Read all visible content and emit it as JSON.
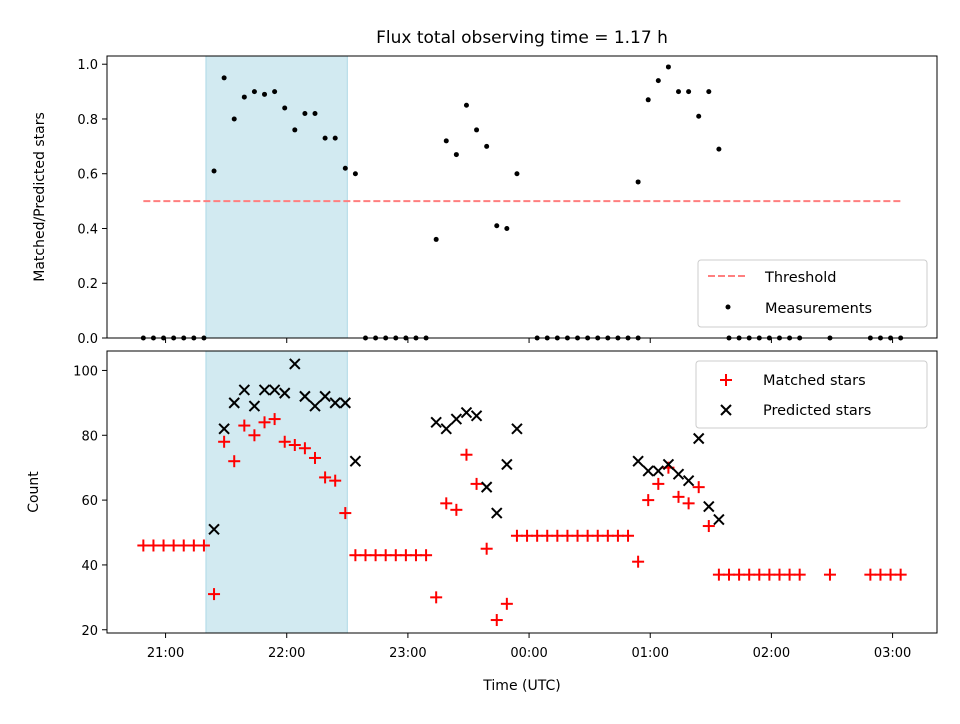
{
  "chart_data": [
    {
      "type": "scatter",
      "title": "Flux total observing time = 1.17 h",
      "xlabel": "",
      "ylabel": "Matched/Predicted stars",
      "ylim": [
        0,
        1.03
      ],
      "y_ticks": [
        "0.0",
        "0.2",
        "0.4",
        "0.6",
        "0.8",
        "1.0"
      ],
      "y_tick_values": [
        0,
        0.2,
        0.4,
        0.6,
        0.8,
        1.0
      ],
      "shaded_interval": [
        "21:20",
        "22:30"
      ],
      "shade_color": "#add8e6",
      "threshold": {
        "name": "Threshold",
        "y": 0.5,
        "x_start": "20:49",
        "x_end": "03:04",
        "color": "#ff7f7f"
      },
      "legend": {
        "location": "lower right",
        "entries": [
          "Threshold",
          "Measurements"
        ]
      },
      "series": [
        {
          "name": "Measurements",
          "marker": "dot",
          "color": "#000000",
          "points": [
            [
              "20:49",
              0
            ],
            [
              "20:54",
              0
            ],
            [
              "20:59",
              0
            ],
            [
              "21:04",
              0
            ],
            [
              "21:09",
              0
            ],
            [
              "21:14",
              0
            ],
            [
              "21:19",
              0
            ],
            [
              "21:24",
              0.61
            ],
            [
              "21:29",
              0.95
            ],
            [
              "21:34",
              0.8
            ],
            [
              "21:39",
              0.88
            ],
            [
              "21:44",
              0.9
            ],
            [
              "21:49",
              0.89
            ],
            [
              "21:54",
              0.9
            ],
            [
              "21:59",
              0.84
            ],
            [
              "22:04",
              0.76
            ],
            [
              "22:09",
              0.82
            ],
            [
              "22:14",
              0.82
            ],
            [
              "22:19",
              0.73
            ],
            [
              "22:24",
              0.73
            ],
            [
              "22:29",
              0.62
            ],
            [
              "22:34",
              0.6
            ],
            [
              "22:39",
              0
            ],
            [
              "22:44",
              0
            ],
            [
              "22:49",
              0
            ],
            [
              "22:54",
              0
            ],
            [
              "22:59",
              0
            ],
            [
              "23:04",
              0
            ],
            [
              "23:09",
              0
            ],
            [
              "23:14",
              0.36
            ],
            [
              "23:19",
              0.72
            ],
            [
              "23:24",
              0.67
            ],
            [
              "23:29",
              0.85
            ],
            [
              "23:34",
              0.76
            ],
            [
              "23:39",
              0.7
            ],
            [
              "23:44",
              0.41
            ],
            [
              "23:49",
              0.4
            ],
            [
              "23:54",
              0.6
            ],
            [
              "00:04",
              0
            ],
            [
              "00:09",
              0
            ],
            [
              "00:14",
              0
            ],
            [
              "00:19",
              0
            ],
            [
              "00:24",
              0
            ],
            [
              "00:29",
              0
            ],
            [
              "00:34",
              0
            ],
            [
              "00:39",
              0
            ],
            [
              "00:44",
              0
            ],
            [
              "00:49",
              0
            ],
            [
              "00:54",
              0
            ],
            [
              "00:54",
              0.57
            ],
            [
              "00:59",
              0.87
            ],
            [
              "01:04",
              0.94
            ],
            [
              "01:09",
              0.99
            ],
            [
              "01:14",
              0.9
            ],
            [
              "01:19",
              0.9
            ],
            [
              "01:24",
              0.81
            ],
            [
              "01:29",
              0.9
            ],
            [
              "01:34",
              0.69
            ],
            [
              "01:39",
              0
            ],
            [
              "01:44",
              0
            ],
            [
              "01:49",
              0
            ],
            [
              "01:54",
              0
            ],
            [
              "01:59",
              0
            ],
            [
              "02:04",
              0
            ],
            [
              "02:09",
              0
            ],
            [
              "02:14",
              0
            ],
            [
              "02:29",
              0
            ],
            [
              "02:49",
              0
            ],
            [
              "02:54",
              0
            ],
            [
              "02:59",
              0
            ],
            [
              "03:04",
              0
            ]
          ]
        }
      ]
    },
    {
      "type": "scatter",
      "title": "",
      "xlabel": "Time (UTC)",
      "ylabel": "Count",
      "ylim": [
        19,
        106
      ],
      "y_ticks": [
        "20",
        "40",
        "60",
        "80",
        "100"
      ],
      "y_tick_values": [
        20,
        40,
        60,
        80,
        100
      ],
      "x_ticks": [
        "21:00",
        "22:00",
        "23:00",
        "00:00",
        "01:00",
        "02:00",
        "03:00"
      ],
      "shaded_interval": [
        "21:20",
        "22:30"
      ],
      "shade_color": "#add8e6",
      "legend": {
        "location": "upper right",
        "entries": [
          "Matched stars",
          "Predicted stars"
        ]
      },
      "series": [
        {
          "name": "Matched stars",
          "marker": "plus",
          "color": "#ff0000",
          "points": [
            [
              "20:49",
              46
            ],
            [
              "20:54",
              46
            ],
            [
              "20:59",
              46
            ],
            [
              "21:04",
              46
            ],
            [
              "21:09",
              46
            ],
            [
              "21:14",
              46
            ],
            [
              "21:19",
              46
            ],
            [
              "21:24",
              31
            ],
            [
              "21:29",
              78
            ],
            [
              "21:34",
              72
            ],
            [
              "21:39",
              83
            ],
            [
              "21:44",
              80
            ],
            [
              "21:49",
              84
            ],
            [
              "21:54",
              85
            ],
            [
              "21:59",
              78
            ],
            [
              "22:04",
              77
            ],
            [
              "22:09",
              76
            ],
            [
              "22:14",
              73
            ],
            [
              "22:19",
              67
            ],
            [
              "22:24",
              66
            ],
            [
              "22:29",
              56
            ],
            [
              "22:34",
              43
            ],
            [
              "22:39",
              43
            ],
            [
              "22:44",
              43
            ],
            [
              "22:49",
              43
            ],
            [
              "22:54",
              43
            ],
            [
              "22:59",
              43
            ],
            [
              "23:04",
              43
            ],
            [
              "23:09",
              43
            ],
            [
              "23:14",
              30
            ],
            [
              "23:19",
              59
            ],
            [
              "23:24",
              57
            ],
            [
              "23:29",
              74
            ],
            [
              "23:34",
              65
            ],
            [
              "23:39",
              45
            ],
            [
              "23:44",
              23
            ],
            [
              "23:49",
              28
            ],
            [
              "23:54",
              49
            ],
            [
              "23:59",
              49
            ],
            [
              "00:04",
              49
            ],
            [
              "00:09",
              49
            ],
            [
              "00:14",
              49
            ],
            [
              "00:19",
              49
            ],
            [
              "00:24",
              49
            ],
            [
              "00:29",
              49
            ],
            [
              "00:34",
              49
            ],
            [
              "00:39",
              49
            ],
            [
              "00:44",
              49
            ],
            [
              "00:49",
              49
            ],
            [
              "00:54",
              41
            ],
            [
              "00:59",
              60
            ],
            [
              "01:04",
              65
            ],
            [
              "01:09",
              70
            ],
            [
              "01:14",
              61
            ],
            [
              "01:19",
              59
            ],
            [
              "01:24",
              64
            ],
            [
              "01:29",
              52
            ],
            [
              "01:34",
              37
            ],
            [
              "01:39",
              37
            ],
            [
              "01:44",
              37
            ],
            [
              "01:49",
              37
            ],
            [
              "01:54",
              37
            ],
            [
              "01:59",
              37
            ],
            [
              "02:04",
              37
            ],
            [
              "02:09",
              37
            ],
            [
              "02:14",
              37
            ],
            [
              "02:29",
              37
            ],
            [
              "02:49",
              37
            ],
            [
              "02:54",
              37
            ],
            [
              "02:59",
              37
            ],
            [
              "03:04",
              37
            ]
          ]
        },
        {
          "name": "Predicted stars",
          "marker": "x",
          "color": "#000000",
          "points": [
            [
              "21:24",
              51
            ],
            [
              "21:29",
              82
            ],
            [
              "21:34",
              90
            ],
            [
              "21:39",
              94
            ],
            [
              "21:44",
              89
            ],
            [
              "21:49",
              94
            ],
            [
              "21:54",
              94
            ],
            [
              "21:59",
              93
            ],
            [
              "22:04",
              102
            ],
            [
              "22:09",
              92
            ],
            [
              "22:14",
              89
            ],
            [
              "22:19",
              92
            ],
            [
              "22:24",
              90
            ],
            [
              "22:29",
              90
            ],
            [
              "22:34",
              72
            ],
            [
              "23:14",
              84
            ],
            [
              "23:19",
              82
            ],
            [
              "23:24",
              85
            ],
            [
              "23:29",
              87
            ],
            [
              "23:34",
              86
            ],
            [
              "23:39",
              64
            ],
            [
              "23:44",
              56
            ],
            [
              "23:49",
              71
            ],
            [
              "23:54",
              82
            ],
            [
              "00:54",
              72
            ],
            [
              "00:59",
              69
            ],
            [
              "01:04",
              69
            ],
            [
              "01:09",
              71
            ],
            [
              "01:14",
              68
            ],
            [
              "01:19",
              66
            ],
            [
              "01:24",
              79
            ],
            [
              "01:29",
              58
            ],
            [
              "01:34",
              54
            ]
          ]
        }
      ]
    }
  ]
}
